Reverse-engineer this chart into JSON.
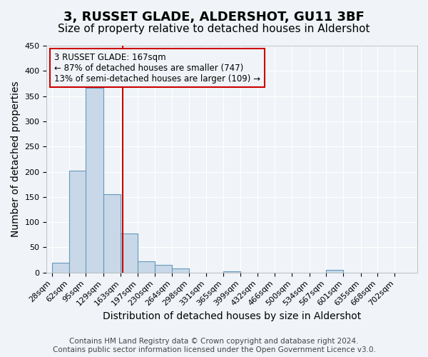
{
  "title": "3, RUSSET GLADE, ALDERSHOT, GU11 3BF",
  "subtitle": "Size of property relative to detached houses in Aldershot",
  "xlabel": "Distribution of detached houses by size in Aldershot",
  "ylabel": "Number of detached properties",
  "bar_values": [
    20,
    202,
    367,
    155,
    78,
    22,
    15,
    8,
    0,
    0,
    3,
    0,
    0,
    0,
    0,
    0,
    5,
    0,
    0,
    0
  ],
  "bin_edges": [
    28,
    62,
    95,
    129,
    163,
    197,
    230,
    264,
    298,
    331,
    365,
    399,
    432,
    466,
    500,
    534,
    567,
    601,
    635,
    668,
    702
  ],
  "bin_labels": [
    "28sqm",
    "62sqm",
    "95sqm",
    "129sqm",
    "163sqm",
    "197sqm",
    "230sqm",
    "264sqm",
    "298sqm",
    "331sqm",
    "365sqm",
    "399sqm",
    "432sqm",
    "466sqm",
    "500sqm",
    "534sqm",
    "567sqm",
    "601sqm",
    "635sqm",
    "668sqm",
    "702sqm"
  ],
  "bar_color": "#c8d8e8",
  "bar_edge_color": "#6699bb",
  "ylim": [
    0,
    450
  ],
  "yticks": [
    0,
    50,
    100,
    150,
    200,
    250,
    300,
    350,
    400,
    450
  ],
  "vline_x": 167,
  "vline_color": "#cc0000",
  "annotation_line1": "3 RUSSET GLADE: 167sqm",
  "annotation_line2": "← 87% of detached houses are smaller (747)",
  "annotation_line3": "13% of semi-detached houses are larger (109) →",
  "annotation_box_color": "#cc0000",
  "footer_line1": "Contains HM Land Registry data © Crown copyright and database right 2024.",
  "footer_line2": "Contains public sector information licensed under the Open Government Licence v3.0.",
  "background_color": "#f0f4f8",
  "grid_color": "#ffffff",
  "title_fontsize": 13,
  "subtitle_fontsize": 11,
  "axis_label_fontsize": 10,
  "tick_fontsize": 8,
  "footer_fontsize": 7.5
}
